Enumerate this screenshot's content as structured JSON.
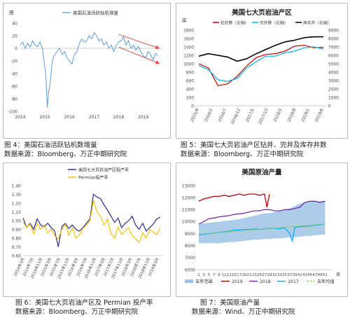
{
  "captions": {
    "c4_title": "图 4：美国石油活跃钻机数增量",
    "c4_source": "数据来源：Bloomberg、万正中期研究院",
    "c5_title": "图 5：美国七大页岩油产区钻井、完井及库存井数",
    "c5_source": "数据来源：Bloomberg、万正中期研究院",
    "c6_title": "图 6：美国七大页岩油产区及 Permian 投产率",
    "c6_source": "数据来源：Bloomberg、万正中期研究院",
    "c7_title": "图 7：美国原油产量",
    "c7_source": "数据来源：Wind、万正中期研究院"
  },
  "chart_data": [
    {
      "id": "rig-change",
      "type": "line",
      "title": "",
      "ylabel": "座",
      "legend": [
        "美国石油活跃钻机增量"
      ],
      "ylim": [
        -100,
        40
      ],
      "yticks": [
        40,
        20,
        0,
        -20,
        -40,
        -60,
        -80,
        -100
      ],
      "xticks": [
        "2014",
        "2015",
        "2016",
        "2017",
        "2018",
        "2019"
      ],
      "xlim": [
        2014,
        2019.75
      ],
      "series": [
        {
          "name": "美国石油活跃钻机增量",
          "color": "#5b9bd5",
          "x": [
            2014.0,
            2014.1,
            2014.2,
            2014.3,
            2014.4,
            2014.5,
            2014.6,
            2014.7,
            2014.8,
            2014.9,
            2015.0,
            2015.05,
            2015.1,
            2015.15,
            2015.2,
            2015.25,
            2015.3,
            2015.35,
            2015.4,
            2015.5,
            2015.6,
            2015.7,
            2015.8,
            2015.9,
            2016.0,
            2016.1,
            2016.2,
            2016.3,
            2016.4,
            2016.5,
            2016.6,
            2016.7,
            2016.8,
            2016.9,
            2017.0,
            2017.1,
            2017.2,
            2017.3,
            2017.4,
            2017.5,
            2017.6,
            2017.7,
            2017.8,
            2017.9,
            2018.0,
            2018.1,
            2018.2,
            2018.3,
            2018.4,
            2018.5,
            2018.6,
            2018.7,
            2018.8,
            2018.9,
            2019.0,
            2019.1,
            2019.2,
            2019.3,
            2019.4,
            2019.5,
            2019.6
          ],
          "y": [
            5,
            10,
            0,
            8,
            2,
            12,
            5,
            3,
            10,
            0,
            -30,
            -50,
            -94,
            -70,
            -60,
            -40,
            -20,
            -15,
            -10,
            -5,
            0,
            -10,
            -5,
            -15,
            -20,
            -25,
            -10,
            -5,
            8,
            15,
            10,
            12,
            20,
            15,
            25,
            20,
            12,
            15,
            5,
            10,
            0,
            5,
            -5,
            5,
            10,
            12,
            18,
            5,
            12,
            0,
            5,
            -3,
            3,
            -5,
            -12,
            -15,
            -5,
            -10,
            -18,
            -8,
            -12
          ]
        }
      ],
      "annotations": [
        "downward-trend-arrows"
      ]
    },
    {
      "id": "duc-wells",
      "type": "line",
      "title": "美国七大页岩油产区",
      "ylabel": "座",
      "y_left_lim": [
        0,
        1800
      ],
      "y_left_ticks": [
        0,
        200,
        400,
        600,
        800,
        1000,
        1200,
        1400,
        1600,
        1800
      ],
      "y_right_lim": [
        0,
        9000
      ],
      "y_right_ticks": [
        0,
        1000,
        2000,
        3000,
        4000,
        5000,
        6000,
        7000,
        8000,
        9000
      ],
      "xticks": [
        "2015/9",
        "2016/2",
        "2016/7",
        "2016/12",
        "2017/5",
        "2017/10",
        "2018/3",
        "2018/8",
        "2019/1",
        "2019/6"
      ],
      "legend": [
        "钻井数（左轴）",
        "完井数（左轴）",
        "库存井（右轴）"
      ],
      "series": [
        {
          "name": "钻井数（左轴）",
          "color": "#c00000",
          "axis": "left",
          "values": [
            1000,
            900,
            480,
            520,
            700,
            950,
            1150,
            1220,
            1240,
            1300,
            1420,
            1440,
            1380,
            1390
          ]
        },
        {
          "name": "完井数（左轴）",
          "color": "#00b0f0",
          "axis": "left",
          "values": [
            960,
            860,
            620,
            580,
            650,
            900,
            1050,
            1180,
            1180,
            1260,
            1300,
            1380,
            1400,
            1350
          ]
        },
        {
          "name": "库存井（右轴）",
          "color": "#000000",
          "axis": "right",
          "values": [
            5900,
            6200,
            6000,
            5800,
            5300,
            5600,
            6200,
            6700,
            7200,
            7600,
            7800,
            8100,
            8200,
            8200
          ]
        }
      ]
    },
    {
      "id": "completion-rate",
      "type": "line",
      "title": "",
      "ylim": [
        0.6,
        1.4
      ],
      "yticks": [
        1.4,
        1.3,
        1.2,
        1.1,
        1.0,
        0.9,
        0.8,
        0.7,
        0.6
      ],
      "xticks": [
        "2014年3月",
        "2014年7月",
        "2014年11月",
        "2015年3月",
        "2015年7月",
        "2015年11月",
        "2016年3月",
        "2016年7月",
        "2016年11月",
        "2017年3月",
        "2017年7月",
        "2017年11月",
        "2018年3月",
        "2018年7月",
        "2018年11月",
        "2019年3月"
      ],
      "legend": [
        "美国七大页岩油产区投产率",
        "Permian投产率"
      ],
      "series": [
        {
          "name": "美国七大页岩油产区投产率",
          "color": "#2e2a8a",
          "values": [
            1.03,
            0.92,
            0.97,
            0.9,
            1.02,
            0.95,
            0.93,
            0.97,
            0.92,
            0.88,
            0.7,
            0.93,
            0.97,
            0.91,
            0.95,
            0.9,
            0.88,
            0.92,
            0.97,
            1.02,
            1.3,
            1.27,
            1.25,
            1.18,
            1.12,
            1.05,
            0.98,
            1.03,
            0.92,
            0.97,
            1.0,
            1.05,
            0.95,
            0.9,
            0.97,
            0.88,
            0.92,
            0.96,
            1.02,
            1.04
          ]
        },
        {
          "name": "Permian投产率",
          "color": "#f2c10f",
          "values": [
            0.99,
            0.92,
            0.96,
            0.85,
            0.97,
            0.9,
            0.95,
            0.86,
            0.9,
            0.83,
            0.79,
            0.9,
            0.96,
            0.83,
            0.92,
            0.8,
            0.84,
            0.91,
            0.95,
            1.0,
            1.23,
            1.1,
            1.05,
            0.95,
            1.02,
            0.85,
            0.8,
            0.93,
            0.84,
            0.88,
            0.92,
            0.83,
            0.79,
            0.75,
            0.86,
            0.8,
            0.9,
            0.87,
            0.84,
            0.92
          ]
        }
      ]
    },
    {
      "id": "us-output",
      "type": "line",
      "title": "美国原油产量",
      "ylim": [
        6000,
        13000
      ],
      "yticks": [
        13000,
        12000,
        11000,
        10000,
        9000,
        8000,
        7000,
        6000
      ],
      "xticks": [
        "1",
        "3",
        "5",
        "7",
        "9",
        "11",
        "13",
        "15",
        "17",
        "19",
        "21",
        "23",
        "25",
        "27",
        "29",
        "31",
        "33",
        "35",
        "37",
        "39",
        "41",
        "43",
        "45",
        "47",
        "49",
        "51"
      ],
      "xlabel": "周",
      "legend": [
        "五年范围",
        "2019",
        "2018",
        "2017",
        "五年均值"
      ],
      "series": [
        {
          "name": "五年范围",
          "type": "area",
          "color": "#9dc3e6",
          "low": [
            8200,
            8200,
            8200,
            8200,
            8200,
            8250,
            8300,
            8300,
            8350,
            8400,
            8450,
            8500,
            8500,
            8550,
            8550,
            8600,
            8600,
            8650,
            8700,
            8700,
            8750,
            8800,
            8800,
            8850,
            8900,
            8900
          ],
          "high": [
            9800,
            9850,
            9900,
            9950,
            10000,
            10050,
            10100,
            10150,
            10200,
            10300,
            10400,
            10500,
            10600,
            10700,
            10700,
            10800,
            10900,
            11000,
            11100,
            11300,
            11500,
            11600,
            11700,
            11700,
            11700,
            11750
          ]
        },
        {
          "name": "2019",
          "color": "#c00000",
          "x": [
            1,
            3,
            5,
            7,
            9,
            11,
            13,
            15,
            17,
            19,
            21,
            23,
            25,
            27,
            28,
            29
          ],
          "values": [
            11700,
            11900,
            12000,
            12100,
            12100,
            12200,
            12100,
            12200,
            12300,
            12200,
            12300,
            12300,
            12200,
            12300,
            11200,
            12300
          ]
        },
        {
          "name": "2018",
          "color": "#7030a0",
          "x": [
            1,
            3,
            5,
            7,
            9,
            11,
            13,
            15,
            17,
            19,
            21,
            23,
            25,
            27,
            29,
            31,
            33,
            35,
            37,
            39,
            41,
            43,
            45,
            47,
            49,
            51
          ],
          "values": [
            9800,
            10000,
            10250,
            10300,
            10400,
            10450,
            10500,
            10600,
            10650,
            10700,
            10800,
            10900,
            10900,
            11000,
            11000,
            10900,
            10900,
            11000,
            11000,
            11100,
            11200,
            11600,
            11700,
            11700,
            11600,
            11700
          ]
        },
        {
          "name": "2017",
          "color": "#00b0f0",
          "x": [
            1,
            3,
            5,
            7,
            9,
            11,
            13,
            15,
            17,
            19,
            21,
            23,
            25,
            27,
            29,
            31,
            33,
            35,
            37,
            38,
            39,
            41,
            43,
            45,
            47,
            49,
            51
          ],
          "values": [
            8900,
            8950,
            9000,
            9050,
            9100,
            9150,
            9200,
            9300,
            9300,
            9350,
            9350,
            9400,
            9350,
            9400,
            9450,
            9450,
            9400,
            9500,
            9000,
            8400,
            9500,
            9600,
            9600,
            9650,
            9700,
            9750,
            9800
          ]
        },
        {
          "name": "五年均值",
          "color": "#92d050",
          "dashed": true,
          "x": [
            1,
            51
          ],
          "values": [
            8950,
            9800
          ]
        }
      ]
    }
  ]
}
